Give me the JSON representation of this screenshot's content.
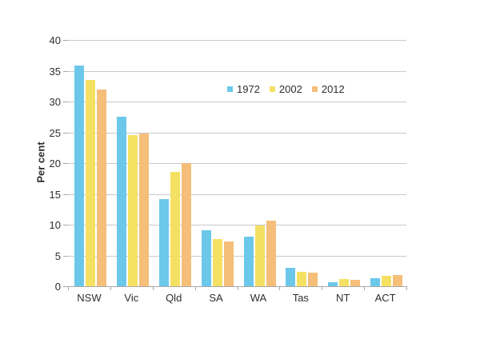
{
  "chart_data": {
    "type": "bar",
    "title": "",
    "xlabel": "",
    "ylabel": "Per cent",
    "ylim": [
      0,
      40
    ],
    "yticks": [
      0,
      5,
      10,
      15,
      20,
      25,
      30,
      35,
      40
    ],
    "grid": "horizontal",
    "legend_position": "upper-center-right",
    "categories": [
      "NSW",
      "Vic",
      "Qld",
      "SA",
      "WA",
      "Tas",
      "NT",
      "ACT"
    ],
    "series": [
      {
        "name": "1972",
        "color": "#6cc8ea",
        "values": [
          35.9,
          27.5,
          14.2,
          9.1,
          8.1,
          3.0,
          0.7,
          1.3
        ]
      },
      {
        "name": "2002",
        "color": "#f4e163",
        "values": [
          33.5,
          24.6,
          18.6,
          7.7,
          9.9,
          2.4,
          1.2,
          1.7
        ]
      },
      {
        "name": "2012",
        "color": "#f5be79",
        "values": [
          32.0,
          24.8,
          20.0,
          7.3,
          10.7,
          2.2,
          1.1,
          1.8
        ]
      }
    ]
  },
  "colors": {
    "gridline": "#c9c9c9",
    "axis": "#a9a9a9",
    "text": "#2e2e2e",
    "background": "#ffffff"
  }
}
